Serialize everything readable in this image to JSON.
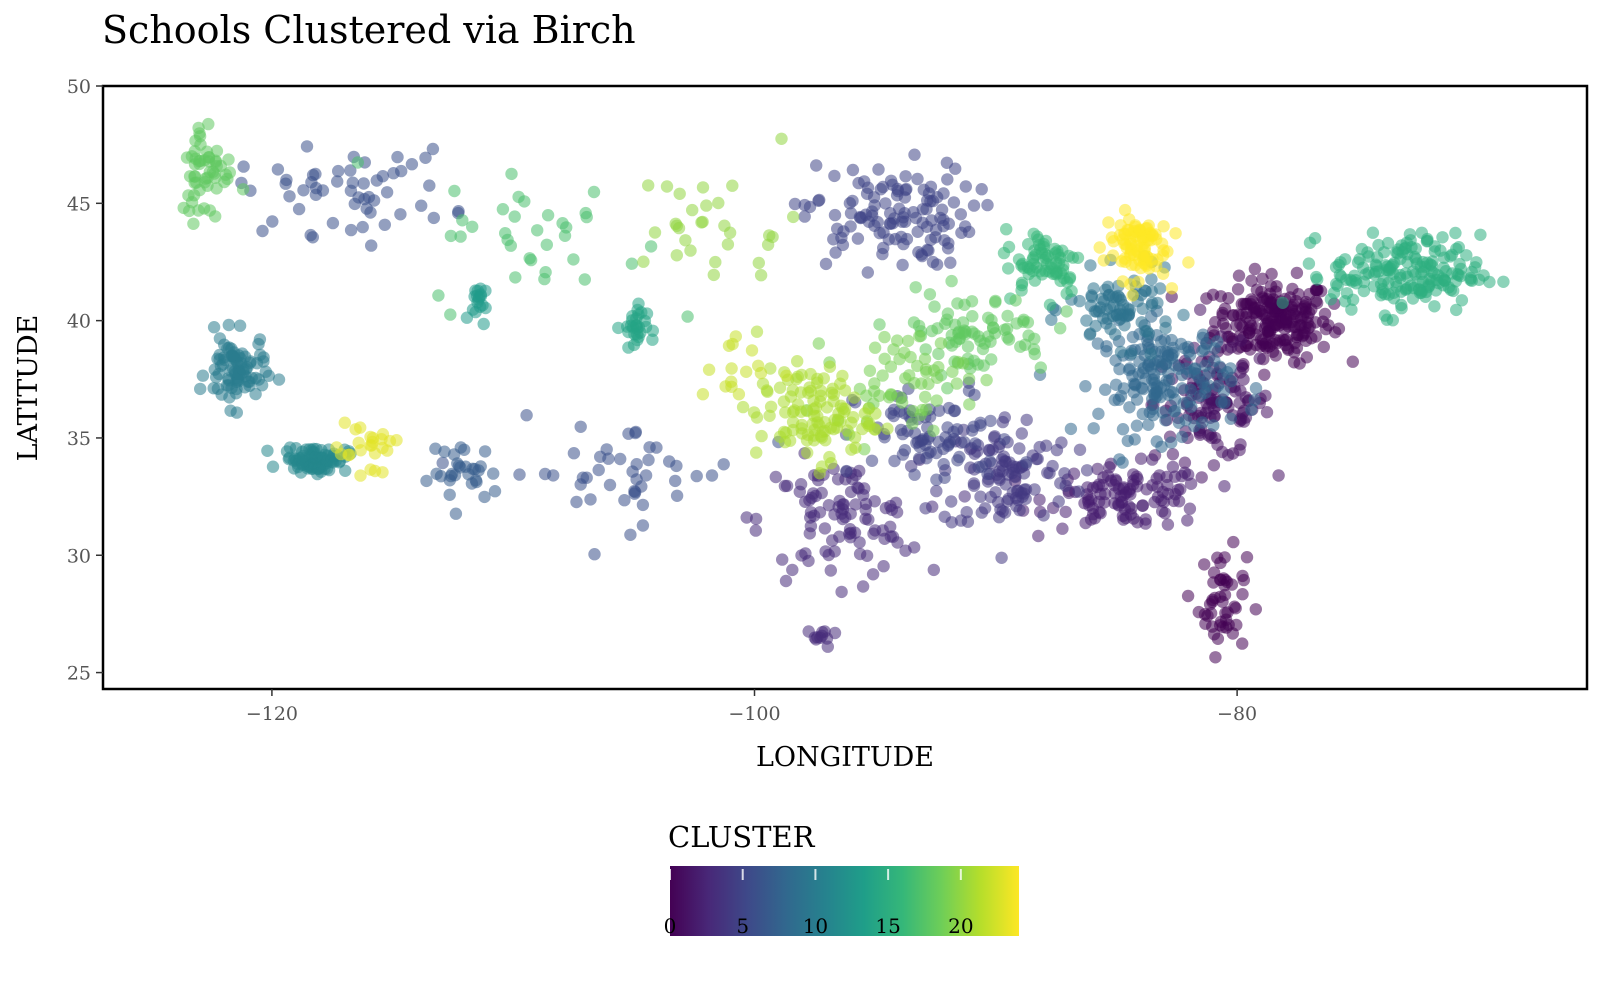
{
  "chart_data": {
    "type": "scatter",
    "title": "Schools Clustered via Birch",
    "xlabel": "LONGITUDE",
    "ylabel": "LATITUDE",
    "xlim": [
      -127,
      -65.5
    ],
    "ylim": [
      24.3,
      50
    ],
    "x_ticks": [
      -120,
      -100,
      -80
    ],
    "x_tick_labels": [
      "−120",
      "−100",
      "−80"
    ],
    "y_ticks": [
      25,
      30,
      35,
      40,
      45,
      50
    ],
    "y_tick_labels": [
      "25",
      "30",
      "35",
      "40",
      "45",
      "50"
    ],
    "grid": false,
    "colormap": "viridis",
    "colormap_stops": [
      "#440154",
      "#482878",
      "#3e4989",
      "#31688e",
      "#26828e",
      "#1f9e89",
      "#35b779",
      "#6ece58",
      "#b5de2b",
      "#fde725"
    ],
    "point_alpha": 0.55,
    "legend": {
      "title": "CLUSTER",
      "position": "bottom",
      "range": [
        0,
        24
      ],
      "ticks": [
        0,
        5,
        10,
        15,
        20
      ],
      "tick_labels": [
        "0",
        "5",
        "10",
        "15",
        "20"
      ]
    },
    "clusters": [
      {
        "id": 0,
        "center": [
          -78.5,
          40.0
        ],
        "spread": [
          2.2,
          1.6
        ],
        "n": 220
      },
      {
        "id": 0,
        "center": [
          -80.6,
          28.0
        ],
        "spread": [
          0.9,
          2.0
        ],
        "n": 50
      },
      {
        "id": 1,
        "center": [
          -81.0,
          36.5
        ],
        "spread": [
          2.2,
          2.2
        ],
        "n": 120
      },
      {
        "id": 2,
        "center": [
          -84.5,
          32.5
        ],
        "spread": [
          3.0,
          1.2
        ],
        "n": 110
      },
      {
        "id": 3,
        "center": [
          -96.5,
          31.5
        ],
        "spread": [
          3.0,
          2.3
        ],
        "n": 100
      },
      {
        "id": 3,
        "center": [
          -97.2,
          26.5
        ],
        "spread": [
          0.6,
          0.4
        ],
        "n": 10
      },
      {
        "id": 4,
        "center": [
          -89.5,
          33.5
        ],
        "spread": [
          2.5,
          2.3
        ],
        "n": 110
      },
      {
        "id": 5,
        "center": [
          -94.5,
          44.5
        ],
        "spread": [
          3.2,
          2.0
        ],
        "n": 120
      },
      {
        "id": 5,
        "center": [
          -92.5,
          35.0
        ],
        "spread": [
          3.0,
          2.0
        ],
        "n": 80
      },
      {
        "id": 6,
        "center": [
          -117.0,
          45.5
        ],
        "spread": [
          4.0,
          1.6
        ],
        "n": 55
      },
      {
        "id": 6,
        "center": [
          -105.5,
          33.5
        ],
        "spread": [
          4.5,
          2.0
        ],
        "n": 45
      },
      {
        "id": 7,
        "center": [
          -112.0,
          33.5
        ],
        "spread": [
          1.3,
          1.2
        ],
        "n": 30
      },
      {
        "id": 8,
        "center": [
          -83.0,
          37.5
        ],
        "spread": [
          2.5,
          2.2
        ],
        "n": 170
      },
      {
        "id": 9,
        "center": [
          -84.8,
          40.5
        ],
        "spread": [
          2.0,
          1.4
        ],
        "n": 80
      },
      {
        "id": 10,
        "center": [
          -121.5,
          37.8
        ],
        "spread": [
          1.1,
          1.4
        ],
        "n": 85
      },
      {
        "id": 11,
        "center": [
          -118.2,
          34.1
        ],
        "spread": [
          1.2,
          0.5
        ],
        "n": 90
      },
      {
        "id": 13,
        "center": [
          -111.5,
          40.8
        ],
        "spread": [
          0.3,
          0.8
        ],
        "n": 18
      },
      {
        "id": 14,
        "center": [
          -105.0,
          39.7
        ],
        "spread": [
          0.5,
          0.9
        ],
        "n": 28
      },
      {
        "id": 15,
        "center": [
          -73.0,
          42.0
        ],
        "spread": [
          2.8,
          1.5
        ],
        "n": 180
      },
      {
        "id": 16,
        "center": [
          -88.0,
          42.5
        ],
        "spread": [
          1.5,
          1.3
        ],
        "n": 70
      },
      {
        "id": 17,
        "center": [
          -109.0,
          43.5
        ],
        "spread": [
          4.0,
          2.8
        ],
        "n": 35
      },
      {
        "id": 18,
        "center": [
          -122.7,
          46.5
        ],
        "spread": [
          1.0,
          2.0
        ],
        "n": 55
      },
      {
        "id": 18,
        "center": [
          -91.0,
          39.5
        ],
        "spread": [
          3.0,
          1.6
        ],
        "n": 80
      },
      {
        "id": 19,
        "center": [
          -94.0,
          37.5
        ],
        "spread": [
          2.5,
          1.8
        ],
        "n": 60
      },
      {
        "id": 20,
        "center": [
          -101.5,
          44.0
        ],
        "spread": [
          3.0,
          2.5
        ],
        "n": 30
      },
      {
        "id": 21,
        "center": [
          -97.5,
          36.0
        ],
        "spread": [
          2.2,
          1.8
        ],
        "n": 110
      },
      {
        "id": 22,
        "center": [
          -101.0,
          38.0
        ],
        "spread": [
          1.5,
          1.5
        ],
        "n": 15
      },
      {
        "id": 23,
        "center": [
          -116.0,
          34.5
        ],
        "spread": [
          1.2,
          1.6
        ],
        "n": 25
      },
      {
        "id": 24,
        "center": [
          -84.2,
          43.2
        ],
        "spread": [
          1.2,
          1.3
        ],
        "n": 90
      }
    ]
  }
}
